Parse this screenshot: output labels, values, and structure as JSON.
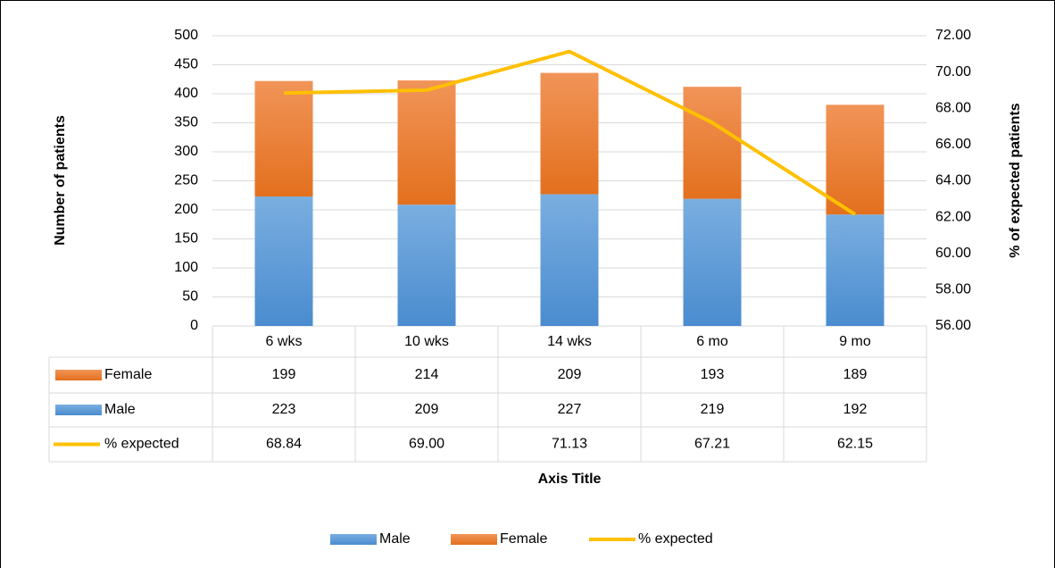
{
  "chart_data": {
    "type": "bar",
    "categories": [
      "6 wks",
      "10 wks",
      "14 wks",
      "6 mo",
      "9 mo"
    ],
    "series": [
      {
        "name": "Male",
        "color": "#5b9bd5",
        "values": [
          223,
          209,
          227,
          219,
          192
        ]
      },
      {
        "name": "Female",
        "color": "#ed7d31",
        "values": [
          199,
          214,
          209,
          193,
          189
        ]
      },
      {
        "name": "% expected",
        "color": "#ffc000",
        "type": "line",
        "axis": "y2",
        "values": [
          68.84,
          69.0,
          71.13,
          67.21,
          62.15
        ],
        "value_labels": [
          "68.84",
          "69.00",
          "71.13",
          "67.21",
          "62.15"
        ]
      }
    ],
    "y_label": "Number of patients",
    "y2_label": "% of expected patients",
    "x_label": "Axis Title",
    "ylim": [
      0,
      500
    ],
    "yticks": [
      0,
      50,
      100,
      150,
      200,
      250,
      300,
      350,
      400,
      450,
      500
    ],
    "y2lim": [
      56,
      72
    ],
    "y2ticks": [
      {
        "value": 56,
        "label": "56.00"
      },
      {
        "value": 58,
        "label": "58.00"
      },
      {
        "value": 60,
        "label": "60.00"
      },
      {
        "value": 62,
        "label": "62.00"
      },
      {
        "value": 64,
        "label": "64.00"
      },
      {
        "value": 66,
        "label": "66.00"
      },
      {
        "value": 68,
        "label": "68.00"
      },
      {
        "value": 70,
        "label": "70.00"
      },
      {
        "value": 72,
        "label": "72.00"
      }
    ],
    "grid": true,
    "legend": "bottom",
    "stacked": true,
    "data_table": true
  }
}
